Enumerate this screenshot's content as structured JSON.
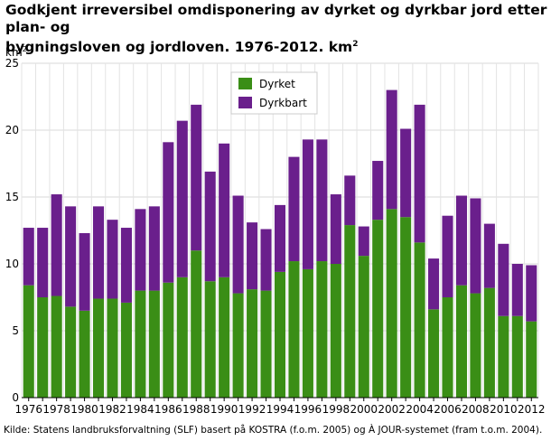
{
  "chart_data": {
    "type": "bar",
    "stacked": true,
    "title_line1": "Godkjent irreversibel omdisponering av dyrket og dyrkbar jord etter plan- og",
    "title_line2": "bygningsloven og jordloven. 1976-2012. km",
    "title_sup": "2",
    "ylabel": "km",
    "ylabel_sup": "2",
    "source": "Kilde: Statens landbruksforvaltning (SLF) basert på KOSTRA (f.o.m. 2005) og À JOUR-systemet (fram t.o.m. 2004).",
    "ylim": [
      0,
      25
    ],
    "yticks": [
      0,
      5,
      10,
      15,
      20,
      25
    ],
    "grid": true,
    "legend_position": "top-center",
    "categories": [
      "1976",
      "1977",
      "1978",
      "1979",
      "1980",
      "1981",
      "1982",
      "1983",
      "1984",
      "1985",
      "1986",
      "1987",
      "1988",
      "1989",
      "1990",
      "1991",
      "1992",
      "1993",
      "1994",
      "1995",
      "1996",
      "1997",
      "1998",
      "1999",
      "2000",
      "2001",
      "2002",
      "2003",
      "2004",
      "2005",
      "2006",
      "2007",
      "2008",
      "2009",
      "2010",
      "2011",
      "2012"
    ],
    "xtick_labels": [
      "1976",
      "1978",
      "1980",
      "1982",
      "1984",
      "1986",
      "1988",
      "1990",
      "1992",
      "1994",
      "1996",
      "1998",
      "2000",
      "2002",
      "2004",
      "2006",
      "2008",
      "2010",
      "2012"
    ],
    "series": [
      {
        "name": "Dyrket",
        "color": "#3a8e16",
        "values": [
          8.4,
          7.5,
          7.6,
          6.8,
          6.5,
          7.4,
          7.4,
          7.1,
          8.0,
          8.0,
          8.6,
          9.0,
          11.0,
          8.7,
          9.0,
          7.8,
          8.1,
          8.0,
          9.4,
          10.2,
          9.6,
          10.2,
          10.0,
          12.9,
          10.6,
          13.3,
          14.1,
          13.5,
          11.6,
          6.6,
          7.5,
          8.4,
          7.8,
          8.2,
          6.1,
          6.1,
          5.7
        ]
      },
      {
        "name": "Dyrkbart",
        "color": "#6a1f8c",
        "values": [
          4.3,
          5.2,
          7.6,
          7.5,
          5.8,
          6.9,
          5.9,
          5.6,
          6.1,
          6.3,
          10.5,
          11.7,
          10.9,
          8.2,
          10.0,
          7.3,
          5.0,
          4.6,
          5.0,
          7.8,
          9.7,
          9.1,
          5.2,
          3.7,
          2.2,
          4.4,
          8.9,
          6.6,
          10.3,
          3.8,
          6.1,
          6.7,
          7.1,
          4.8,
          5.4,
          3.9,
          4.2
        ]
      }
    ]
  }
}
